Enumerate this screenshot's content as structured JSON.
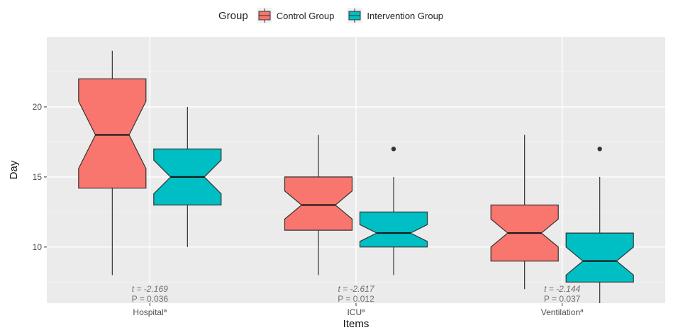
{
  "chart_data": {
    "type": "boxplot",
    "notched": true,
    "xlabel": "Items",
    "ylabel": "Day",
    "ylim": [
      6,
      25
    ],
    "yticks": [
      10,
      15,
      20
    ],
    "grid": true,
    "legend": {
      "title": "Group",
      "placement": "top",
      "entries": [
        {
          "name": "Control Group",
          "color": "#f8766d"
        },
        {
          "name": "Intervention Group",
          "color": "#00bfc4"
        }
      ]
    },
    "categories": [
      {
        "label": "Hospital",
        "superscript": "a",
        "stats": {
          "t": "t = -2.169",
          "p": "P =  0.036"
        },
        "boxes": [
          {
            "series": "Control Group",
            "min": 8,
            "q1": 14.2,
            "median": 18,
            "q3": 22,
            "max": 24,
            "notch_low": 15.6,
            "notch_high": 20.4,
            "outliers": []
          },
          {
            "series": "Intervention Group",
            "min": 10,
            "q1": 13,
            "median": 15,
            "q3": 17,
            "max": 20,
            "notch_low": 13.8,
            "notch_high": 16.2,
            "outliers": []
          }
        ]
      },
      {
        "label": "ICU",
        "superscript": "a",
        "stats": {
          "t": "t = -2.617",
          "p": "P = 0.012"
        },
        "boxes": [
          {
            "series": "Control Group",
            "min": 8,
            "q1": 11.2,
            "median": 13,
            "q3": 15,
            "max": 18,
            "notch_low": 12.0,
            "notch_high": 14.0,
            "outliers": []
          },
          {
            "series": "Intervention Group",
            "min": 8,
            "q1": 10,
            "median": 11,
            "q3": 12.5,
            "max": 15,
            "notch_low": 10.4,
            "notch_high": 11.6,
            "outliers": [
              17
            ]
          }
        ]
      },
      {
        "label": "Ventilation",
        "superscript": "a",
        "stats": {
          "t": "t = -2.144",
          "p": "P = 0.037"
        },
        "boxes": [
          {
            "series": "Control Group",
            "min": 7,
            "q1": 9,
            "median": 11,
            "q3": 13,
            "max": 18,
            "notch_low": 10.0,
            "notch_high": 12.0,
            "outliers": []
          },
          {
            "series": "Intervention Group",
            "min": 6,
            "q1": 7.5,
            "median": 9,
            "q3": 11,
            "max": 15,
            "notch_low": 8.0,
            "notch_high": 10.0,
            "outliers": [
              17
            ]
          }
        ]
      }
    ]
  }
}
